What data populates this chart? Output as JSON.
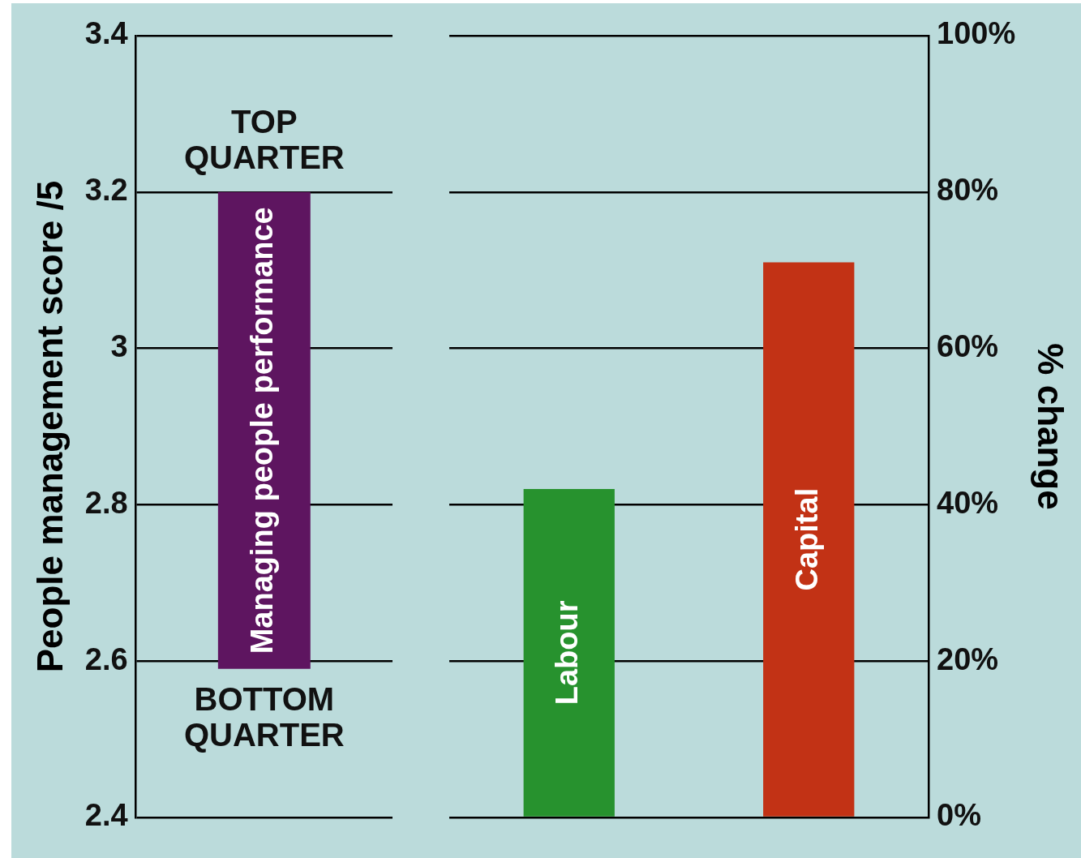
{
  "chart_data": [
    {
      "type": "bar",
      "ylabel": "People management score /5",
      "categories": [
        "Managing people performance"
      ],
      "base": [
        2.59
      ],
      "values": [
        0.61
      ],
      "color": "#5e1560",
      "ylim": [
        2.4,
        3.4
      ],
      "yticks": [
        2.4,
        2.6,
        2.8,
        3.0,
        3.2,
        3.4
      ],
      "grid": "y",
      "tick_labels": "y",
      "annotations": [
        {
          "text": "TOP QUARTER",
          "x": "Managing people performance",
          "y": 3.2
        },
        {
          "text": "BOTTOM QUARTER",
          "x": "Managing people performance",
          "y": 2.59
        }
      ]
    },
    {
      "type": "bar",
      "ylabel": "% change",
      "categories": [
        "Labour",
        "Capital"
      ],
      "values": [
        42,
        71
      ],
      "colors": [
        "#27922e",
        "#c23215"
      ],
      "ylim": [
        0,
        100
      ],
      "yticks": [
        {
          "value": 0,
          "label": "0%"
        },
        {
          "value": 20,
          "label": "20%"
        },
        {
          "value": 40,
          "label": "40%"
        },
        {
          "value": 60,
          "label": "60%"
        },
        {
          "value": 80,
          "label": "80%"
        },
        {
          "value": 100,
          "label": "100%"
        }
      ],
      "grid": "y",
      "tick_labels": "y"
    }
  ]
}
